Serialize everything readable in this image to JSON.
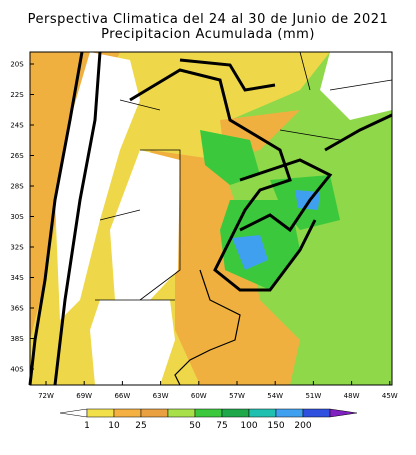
{
  "header": {
    "title": "Perspectiva Climatica del 24 al 30 de Junio de 2021",
    "subtitle": "Precipitacion Acumulada (mm)"
  },
  "map": {
    "lat_labels": [
      "20S",
      "22S",
      "24S",
      "26S",
      "28S",
      "30S",
      "32S",
      "34S",
      "36S",
      "38S",
      "40S"
    ],
    "lon_labels": [
      "72W",
      "69W",
      "66W",
      "63W",
      "60W",
      "57W",
      "54W",
      "51W",
      "48W",
      "45W"
    ]
  },
  "legend": {
    "labels": [
      "1",
      "10",
      "25",
      "50",
      "75",
      "100",
      "150",
      "200"
    ],
    "colors": [
      "#ffffff",
      "#f2e04a",
      "#f4b040",
      "#e8a040",
      "#a8e04a",
      "#3cc83c",
      "#1ea84a",
      "#20c0b0",
      "#40a0f0",
      "#3050e0",
      "#8020c0"
    ]
  }
}
